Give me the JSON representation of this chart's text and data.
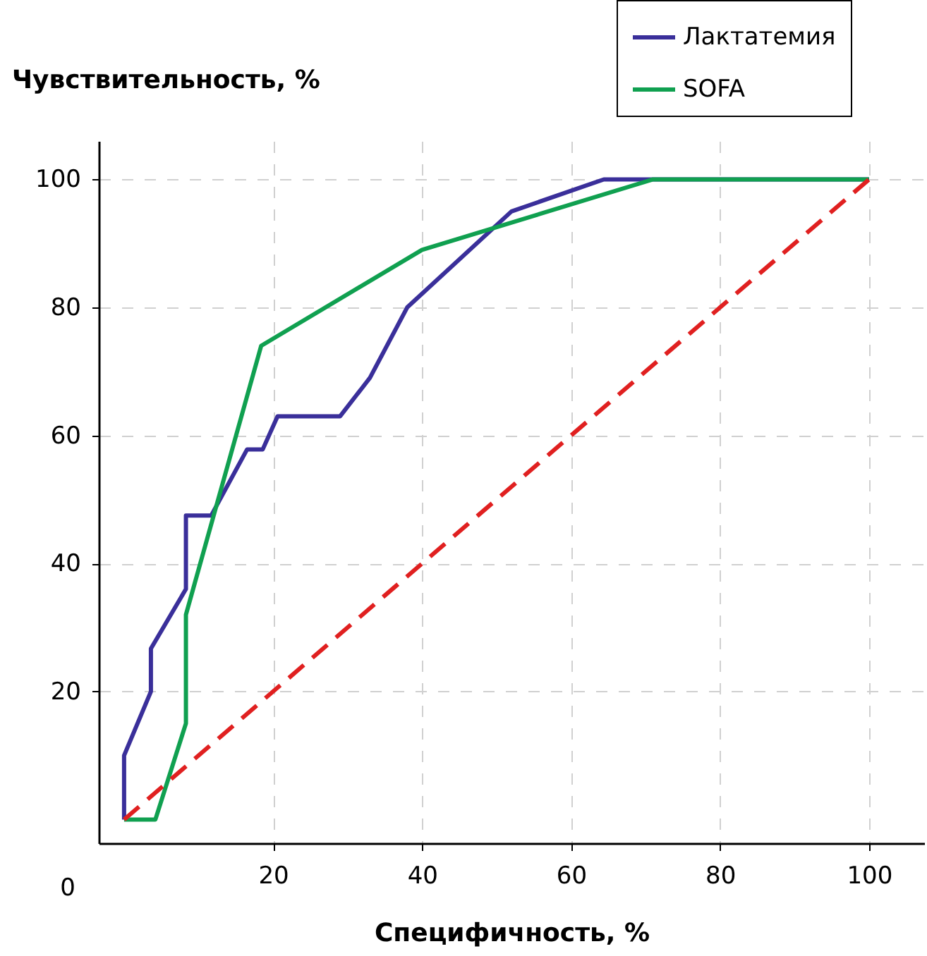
{
  "chart_data": {
    "type": "line",
    "xlabel": "Специфичность, %",
    "ylabel": "Чувствительность, %",
    "xlim": [
      -3.4,
      107.4
    ],
    "ylim": [
      -3.7,
      106
    ],
    "xticks": [
      20,
      40,
      60,
      80,
      100
    ],
    "yticks": [
      20,
      40,
      60,
      80,
      100
    ],
    "annotations": [
      "0"
    ],
    "grid": true,
    "legend": "top right",
    "marker": "none",
    "series": [
      {
        "name": "Лактатемия",
        "color": "#3a2f9a",
        "line_style": "solid",
        "x": [
          0,
          0,
          3.6,
          3.6,
          8.3,
          8.3,
          11.7,
          16.5,
          18.6,
          20.6,
          29,
          33,
          38,
          52,
          64.4,
          100
        ],
        "values": [
          0,
          10,
          20,
          26.7,
          36,
          47.5,
          47.5,
          57.8,
          57.8,
          63,
          63,
          69,
          80,
          95,
          100,
          100
        ]
      },
      {
        "name": "SOFA",
        "color": "#10a050",
        "line_style": "solid",
        "x": [
          0,
          4.2,
          8.3,
          8.3,
          18.4,
          40,
          71,
          100
        ],
        "values": [
          0,
          0,
          15,
          32,
          74,
          89,
          100,
          100
        ]
      },
      {
        "color": "#e02020",
        "line_style": "dashed",
        "x": [
          0,
          100
        ],
        "values": [
          0,
          100
        ]
      }
    ]
  }
}
